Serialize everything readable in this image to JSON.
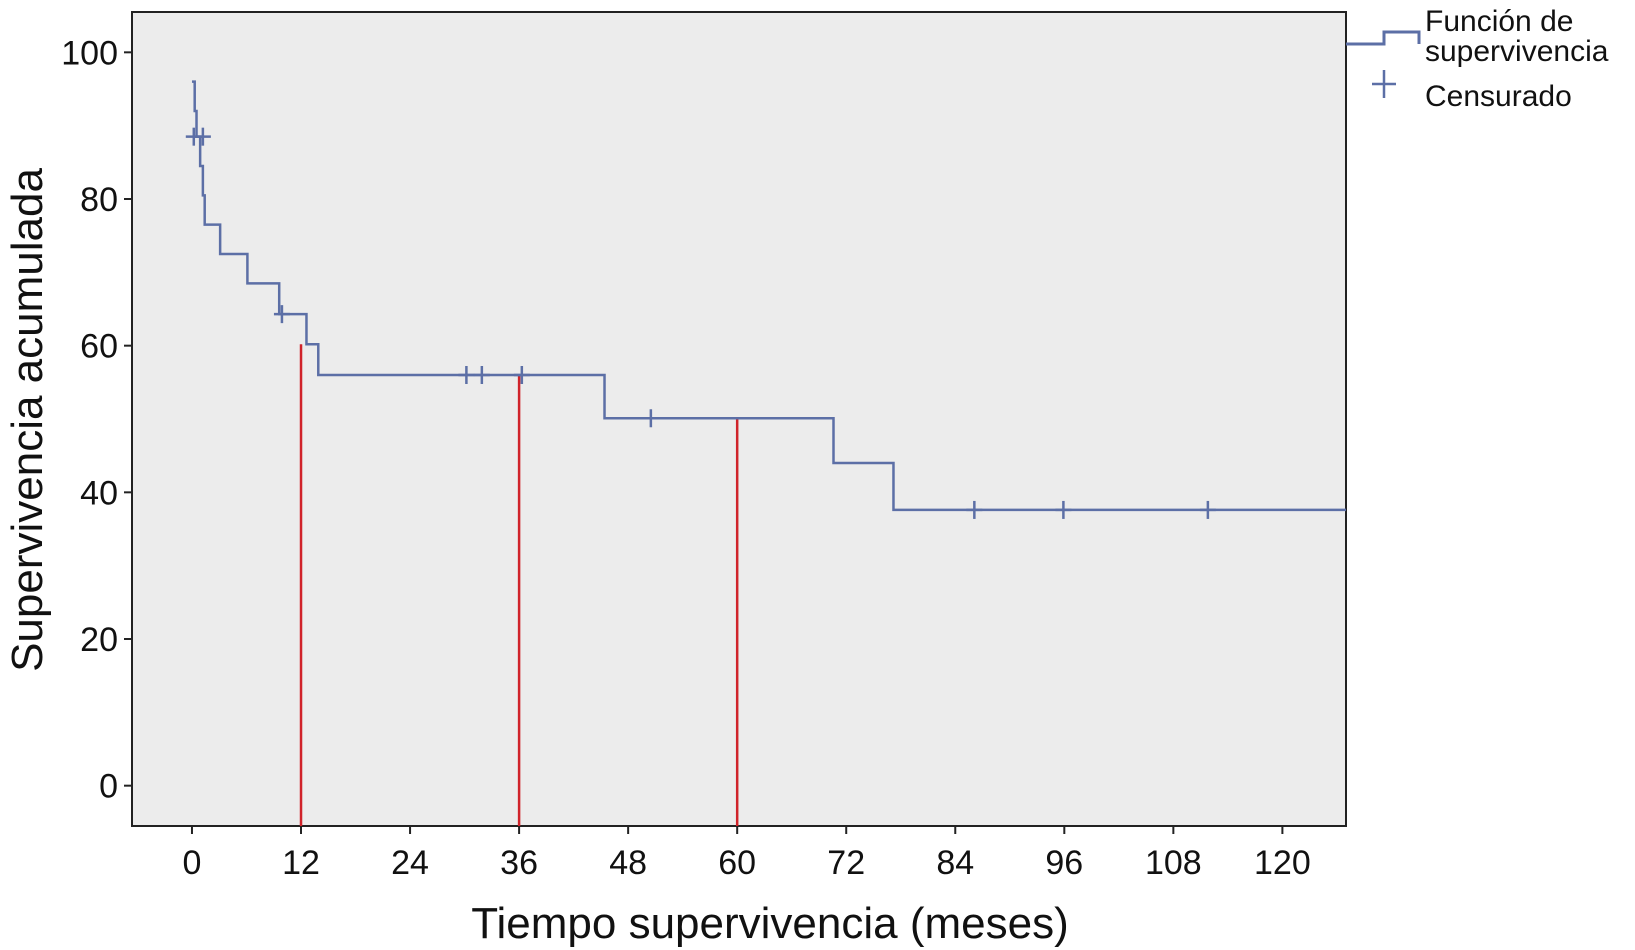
{
  "chart_data": {
    "type": "line",
    "title": "",
    "xlabel": "Tiempo supervivencia (meses)",
    "ylabel": "Supervivencia acumulada",
    "xlim": [
      -6.6,
      127
    ],
    "ylim": [
      -5.5,
      105.5
    ],
    "x_ticks": [
      0,
      12,
      24,
      36,
      48,
      60,
      72,
      84,
      96,
      108,
      120
    ],
    "x_tick_labels": [
      "0",
      "12",
      "24",
      "36",
      "48",
      "60",
      "72",
      "84",
      "96",
      "108",
      "120"
    ],
    "y_ticks": [
      0,
      20,
      40,
      60,
      80,
      100
    ],
    "y_tick_labels": [
      "0",
      "20",
      "40",
      "60",
      "80",
      "100"
    ],
    "grid": false,
    "legend_position": "outside-top-right",
    "legend": [
      "Función de supervivencia",
      "Censurado"
    ],
    "colors": {
      "survival_line": "#5c6fa6",
      "reference_lines": "#d0232a",
      "plot_background": "#ececec",
      "axis": "#222222"
    },
    "series": [
      {
        "name": "Función de supervivencia",
        "type": "step",
        "points": [
          [
            0,
            96
          ],
          [
            0.3,
            92
          ],
          [
            0.5,
            88.5
          ],
          [
            0.9,
            84.5
          ],
          [
            1.2,
            80.5
          ],
          [
            1.4,
            76.5
          ],
          [
            3.1,
            72.5
          ],
          [
            6.1,
            68.5
          ],
          [
            9.6,
            64.3
          ],
          [
            12.6,
            60.2
          ],
          [
            13.9,
            56
          ],
          [
            45.4,
            50.1
          ],
          [
            70.6,
            44
          ],
          [
            77.2,
            37.6
          ],
          [
            127,
            37.6
          ]
        ]
      },
      {
        "name": "Censurado",
        "type": "marker",
        "points": [
          [
            0.2,
            88.5
          ],
          [
            1.2,
            88.5
          ],
          [
            9.9,
            64.3
          ],
          [
            30.2,
            56
          ],
          [
            31.9,
            56
          ],
          [
            36.3,
            56
          ],
          [
            50.5,
            50.1
          ],
          [
            86.1,
            37.6
          ],
          [
            95.9,
            37.6
          ],
          [
            111.8,
            37.6
          ]
        ]
      }
    ],
    "reference_lines": [
      {
        "x": 12,
        "y": 60.2
      },
      {
        "x": 36,
        "y": 56
      },
      {
        "x": 60,
        "y": 50.1
      }
    ]
  }
}
